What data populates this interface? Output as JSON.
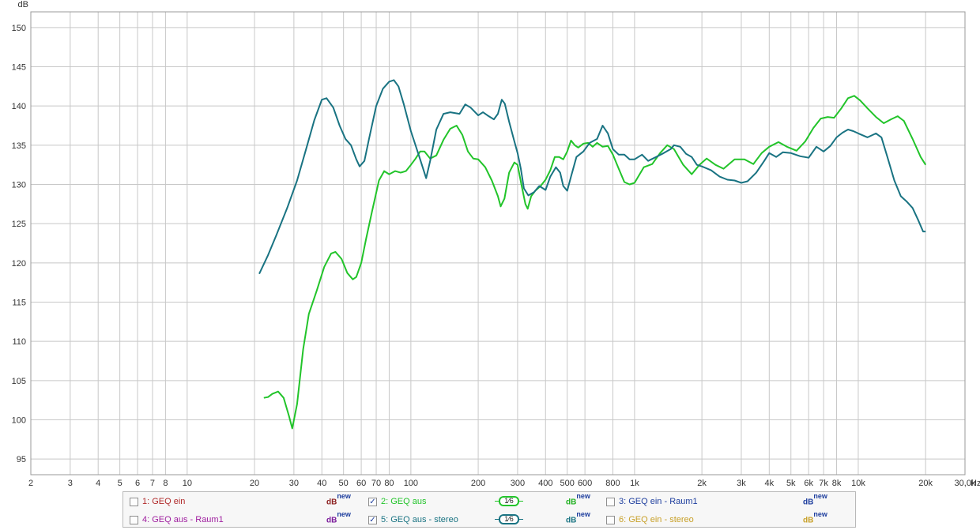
{
  "chart_data": {
    "type": "line",
    "ylabel": "dB",
    "xunit": "Hz",
    "xscale": "log",
    "xlim": [
      2,
      30000
    ],
    "ylim": [
      93,
      152
    ],
    "grid": true,
    "y_ticks": [
      95,
      100,
      105,
      110,
      115,
      120,
      125,
      130,
      135,
      140,
      145,
      150
    ],
    "x_ticks": [
      {
        "v": 2,
        "label": "2"
      },
      {
        "v": 3,
        "label": "3"
      },
      {
        "v": 4,
        "label": "4"
      },
      {
        "v": 5,
        "label": "5"
      },
      {
        "v": 6,
        "label": "6"
      },
      {
        "v": 7,
        "label": "7"
      },
      {
        "v": 8,
        "label": "8"
      },
      {
        "v": 10,
        "label": "10"
      },
      {
        "v": 20,
        "label": "20"
      },
      {
        "v": 30,
        "label": "30"
      },
      {
        "v": 40,
        "label": "40"
      },
      {
        "v": 50,
        "label": "50"
      },
      {
        "v": 60,
        "label": "60"
      },
      {
        "v": 70,
        "label": "70"
      },
      {
        "v": 80,
        "label": "80"
      },
      {
        "v": 100,
        "label": "100"
      },
      {
        "v": 200,
        "label": "200"
      },
      {
        "v": 300,
        "label": "300"
      },
      {
        "v": 400,
        "label": "400"
      },
      {
        "v": 500,
        "label": "500"
      },
      {
        "v": 600,
        "label": "600"
      },
      {
        "v": 800,
        "label": "800"
      },
      {
        "v": 1000,
        "label": "1k"
      },
      {
        "v": 2000,
        "label": "2k"
      },
      {
        "v": 3000,
        "label": "3k"
      },
      {
        "v": 4000,
        "label": "4k"
      },
      {
        "v": 5000,
        "label": "5k"
      },
      {
        "v": 6000,
        "label": "6k"
      },
      {
        "v": 7000,
        "label": "7k"
      },
      {
        "v": 8000,
        "label": "8k"
      },
      {
        "v": 10000,
        "label": "10k"
      },
      {
        "v": 20000,
        "label": "20k"
      },
      {
        "v": 30000,
        "label": "30,0k"
      }
    ],
    "series": [
      {
        "name": "GEQ aus",
        "color": "#22c42a",
        "points": [
          [
            22,
            102.8
          ],
          [
            23,
            102.9
          ],
          [
            24,
            103.3
          ],
          [
            25.5,
            103.6
          ],
          [
            27,
            102.8
          ],
          [
            28.5,
            100.5
          ],
          [
            29.5,
            98.9
          ],
          [
            31,
            102
          ],
          [
            33,
            109
          ],
          [
            35,
            113.5
          ],
          [
            38,
            116.5
          ],
          [
            41,
            119.5
          ],
          [
            44,
            121.2
          ],
          [
            46,
            121.4
          ],
          [
            49,
            120.5
          ],
          [
            52,
            118.7
          ],
          [
            55,
            117.9
          ],
          [
            57,
            118.2
          ],
          [
            60,
            120
          ],
          [
            63,
            123
          ],
          [
            67,
            126.5
          ],
          [
            72,
            130.5
          ],
          [
            76,
            131.7
          ],
          [
            80,
            131.3
          ],
          [
            85,
            131.7
          ],
          [
            90,
            131.5
          ],
          [
            95,
            131.7
          ],
          [
            100,
            132.5
          ],
          [
            105,
            133.3
          ],
          [
            110,
            134.2
          ],
          [
            115,
            134.2
          ],
          [
            122,
            133.3
          ],
          [
            130,
            133.7
          ],
          [
            140,
            135.7
          ],
          [
            150,
            137.1
          ],
          [
            160,
            137.5
          ],
          [
            170,
            136.3
          ],
          [
            180,
            134.2
          ],
          [
            190,
            133.3
          ],
          [
            200,
            133.2
          ],
          [
            215,
            132.2
          ],
          [
            230,
            130.5
          ],
          [
            245,
            128.5
          ],
          [
            252,
            127.2
          ],
          [
            262,
            128.2
          ],
          [
            275,
            131.5
          ],
          [
            290,
            132.8
          ],
          [
            300,
            132.5
          ],
          [
            312,
            130
          ],
          [
            325,
            127.5
          ],
          [
            333,
            126.9
          ],
          [
            345,
            128.5
          ],
          [
            360,
            129.2
          ],
          [
            380,
            129.8
          ],
          [
            400,
            130.6
          ],
          [
            420,
            131.8
          ],
          [
            440,
            133.5
          ],
          [
            460,
            133.5
          ],
          [
            480,
            133.2
          ],
          [
            500,
            134.2
          ],
          [
            520,
            135.6
          ],
          [
            540,
            135
          ],
          [
            560,
            134.7
          ],
          [
            590,
            135.2
          ],
          [
            620,
            135.3
          ],
          [
            650,
            134.8
          ],
          [
            680,
            135.3
          ],
          [
            720,
            134.8
          ],
          [
            760,
            134.9
          ],
          [
            800,
            133.8
          ],
          [
            850,
            132
          ],
          [
            900,
            130.3
          ],
          [
            950,
            130
          ],
          [
            1000,
            130.2
          ],
          [
            1100,
            132.2
          ],
          [
            1200,
            132.6
          ],
          [
            1300,
            134
          ],
          [
            1400,
            135
          ],
          [
            1500,
            134.5
          ],
          [
            1650,
            132.5
          ],
          [
            1800,
            131.3
          ],
          [
            1950,
            132.5
          ],
          [
            2100,
            133.3
          ],
          [
            2300,
            132.5
          ],
          [
            2500,
            132
          ],
          [
            2800,
            133.2
          ],
          [
            3100,
            133.2
          ],
          [
            3400,
            132.6
          ],
          [
            3700,
            134
          ],
          [
            4000,
            134.8
          ],
          [
            4400,
            135.4
          ],
          [
            4800,
            134.8
          ],
          [
            5300,
            134.3
          ],
          [
            5800,
            135.5
          ],
          [
            6300,
            137.2
          ],
          [
            6800,
            138.4
          ],
          [
            7300,
            138.6
          ],
          [
            7800,
            138.5
          ],
          [
            8400,
            139.7
          ],
          [
            9000,
            141
          ],
          [
            9600,
            141.3
          ],
          [
            10200,
            140.7
          ],
          [
            11000,
            139.7
          ],
          [
            12000,
            138.6
          ],
          [
            13000,
            137.8
          ],
          [
            14000,
            138.3
          ],
          [
            15000,
            138.7
          ],
          [
            16000,
            138.1
          ],
          [
            17500,
            135.8
          ],
          [
            19000,
            133.5
          ],
          [
            20000,
            132.5
          ]
        ]
      },
      {
        "name": "GEQ aus - stereo",
        "color": "#197382",
        "points": [
          [
            21,
            118.6
          ],
          [
            23,
            121
          ],
          [
            25,
            123.5
          ],
          [
            28,
            127
          ],
          [
            31,
            130.5
          ],
          [
            34,
            134.5
          ],
          [
            37,
            138.2
          ],
          [
            40,
            140.8
          ],
          [
            42,
            141
          ],
          [
            45,
            139.8
          ],
          [
            48,
            137.5
          ],
          [
            51,
            135.8
          ],
          [
            54,
            135
          ],
          [
            57,
            133.2
          ],
          [
            59,
            132.3
          ],
          [
            62,
            133
          ],
          [
            65,
            135.8
          ],
          [
            70,
            140
          ],
          [
            75,
            142.2
          ],
          [
            80,
            143.1
          ],
          [
            84,
            143.3
          ],
          [
            88,
            142.5
          ],
          [
            93,
            140.2
          ],
          [
            100,
            136.8
          ],
          [
            110,
            133.2
          ],
          [
            117,
            130.8
          ],
          [
            122,
            133
          ],
          [
            130,
            137
          ],
          [
            140,
            139
          ],
          [
            150,
            139.2
          ],
          [
            165,
            139
          ],
          [
            175,
            140.2
          ],
          [
            185,
            139.8
          ],
          [
            200,
            138.8
          ],
          [
            210,
            139.2
          ],
          [
            220,
            138.8
          ],
          [
            235,
            138.3
          ],
          [
            245,
            139
          ],
          [
            255,
            140.8
          ],
          [
            263,
            140.3
          ],
          [
            275,
            138
          ],
          [
            290,
            135.5
          ],
          [
            300,
            134
          ],
          [
            310,
            132
          ],
          [
            320,
            129.5
          ],
          [
            335,
            128.6
          ],
          [
            355,
            129
          ],
          [
            375,
            129.8
          ],
          [
            400,
            129.3
          ],
          [
            420,
            131
          ],
          [
            445,
            132.2
          ],
          [
            465,
            131.5
          ],
          [
            480,
            129.8
          ],
          [
            500,
            129.2
          ],
          [
            520,
            131
          ],
          [
            550,
            133.5
          ],
          [
            590,
            134.2
          ],
          [
            630,
            135.3
          ],
          [
            680,
            135.8
          ],
          [
            720,
            137.5
          ],
          [
            760,
            136.5
          ],
          [
            800,
            134.5
          ],
          [
            850,
            133.8
          ],
          [
            900,
            133.8
          ],
          [
            950,
            133.2
          ],
          [
            1000,
            133.2
          ],
          [
            1080,
            133.8
          ],
          [
            1150,
            133
          ],
          [
            1250,
            133.5
          ],
          [
            1350,
            134
          ],
          [
            1450,
            134.5
          ],
          [
            1500,
            135
          ],
          [
            1600,
            134.8
          ],
          [
            1700,
            133.9
          ],
          [
            1800,
            133.5
          ],
          [
            1900,
            132.5
          ],
          [
            2000,
            132.3
          ],
          [
            2200,
            131.8
          ],
          [
            2400,
            131
          ],
          [
            2600,
            130.6
          ],
          [
            2800,
            130.5
          ],
          [
            3000,
            130.2
          ],
          [
            3200,
            130.4
          ],
          [
            3500,
            131.5
          ],
          [
            3800,
            133
          ],
          [
            4000,
            134
          ],
          [
            4300,
            133.5
          ],
          [
            4600,
            134.1
          ],
          [
            5000,
            134
          ],
          [
            5500,
            133.6
          ],
          [
            6000,
            133.4
          ],
          [
            6500,
            134.8
          ],
          [
            7000,
            134.2
          ],
          [
            7500,
            134.9
          ],
          [
            8000,
            136
          ],
          [
            8500,
            136.6
          ],
          [
            9000,
            137
          ],
          [
            9500,
            136.8
          ],
          [
            10000,
            136.5
          ],
          [
            11000,
            136
          ],
          [
            12000,
            136.5
          ],
          [
            12700,
            136
          ],
          [
            13500,
            133.5
          ],
          [
            14500,
            130.5
          ],
          [
            15500,
            128.5
          ],
          [
            16500,
            127.8
          ],
          [
            17500,
            127
          ],
          [
            18500,
            125.5
          ],
          [
            19500,
            124
          ],
          [
            20000,
            124
          ]
        ]
      }
    ]
  },
  "legend": {
    "entries": [
      {
        "label": "1: GEQ ein",
        "color": "#b02a2a",
        "checked": false,
        "db_color": "#8b1f1f"
      },
      {
        "label": "2: GEQ aus",
        "color": "#22c42a",
        "checked": true,
        "db_color": "#20b020"
      },
      {
        "label": "3: GEQ ein - Raum1",
        "color": "#1e3e9e",
        "checked": false,
        "db_color": "#1e3e9e"
      },
      {
        "label": "4: GEQ aus - Raum1",
        "color": "#a020a0",
        "checked": false,
        "db_color": "#7a1a9a"
      },
      {
        "label": "5: GEQ aus - stereo",
        "color": "#197382",
        "checked": true,
        "db_color": "#197382"
      },
      {
        "label": "6: GEQ ein - stereo",
        "color": "#c8a028",
        "checked": false,
        "db_color": "#c8a028"
      }
    ],
    "db_label": "dB",
    "db_sup": "new",
    "smoothing_label": "1⁄6"
  }
}
